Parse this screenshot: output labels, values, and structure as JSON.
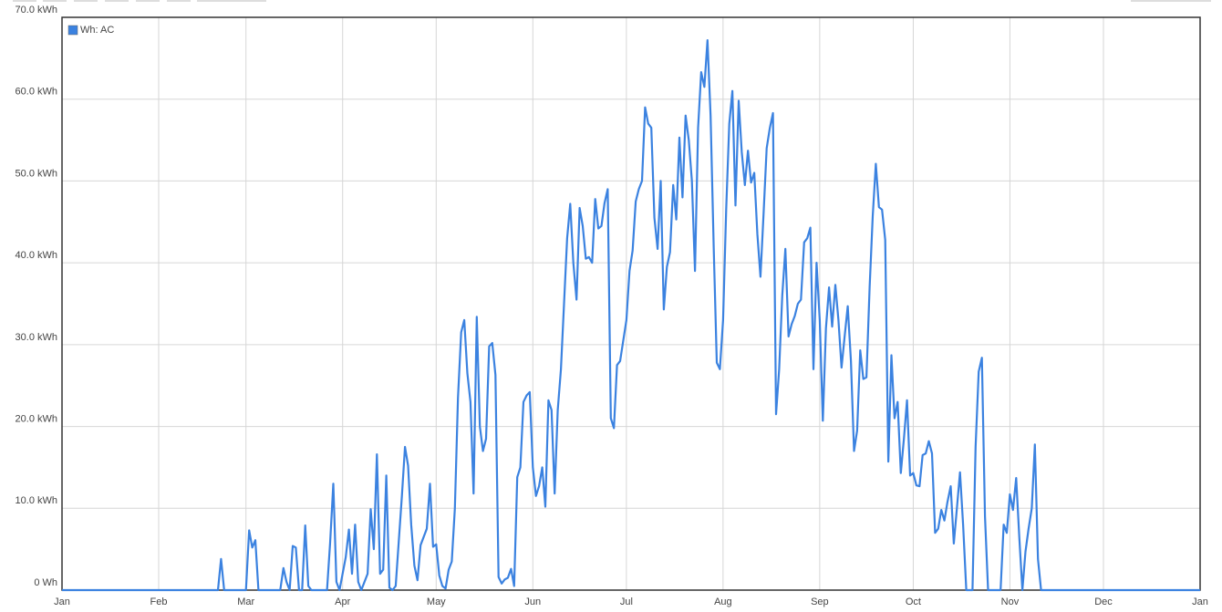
{
  "chart_data": {
    "type": "line",
    "x": [
      0,
      50,
      51,
      52,
      59,
      60,
      61,
      62,
      63,
      70,
      71,
      72,
      73,
      74,
      75,
      76,
      77,
      78,
      79,
      80,
      85,
      86,
      87,
      88,
      89,
      91,
      92,
      93,
      94,
      95,
      96,
      98,
      99,
      100,
      101,
      102,
      103,
      104,
      105,
      106,
      107,
      109,
      110,
      111,
      112,
      113,
      114,
      115,
      117,
      118,
      119,
      120,
      121,
      122,
      123,
      124,
      125,
      126,
      127,
      128,
      129,
      130,
      131,
      132,
      133,
      134,
      135,
      136,
      137,
      138,
      139,
      140,
      141,
      142,
      143,
      144,
      145,
      146,
      147,
      148,
      149,
      150,
      151,
      152,
      153,
      154,
      155,
      156,
      157,
      158,
      159,
      160,
      161,
      162,
      163,
      164,
      165,
      166,
      167,
      168,
      169,
      170,
      171,
      172,
      173,
      174,
      175,
      176,
      177,
      178,
      179,
      181,
      182,
      183,
      184,
      185,
      186,
      187,
      188,
      189,
      190,
      191,
      192,
      193,
      194,
      195,
      196,
      197,
      198,
      199,
      200,
      201,
      202,
      203,
      204,
      205,
      206,
      207,
      208,
      209,
      210,
      211,
      212,
      213,
      214,
      215,
      216,
      217,
      218,
      219,
      220,
      221,
      222,
      223,
      224,
      225,
      226,
      227,
      228,
      229,
      230,
      231,
      232,
      233,
      234,
      235,
      236,
      237,
      238,
      239,
      240,
      241,
      242,
      243,
      244,
      245,
      246,
      247,
      248,
      249,
      250,
      251,
      252,
      253,
      254,
      255,
      256,
      257,
      258,
      259,
      260,
      261,
      262,
      263,
      264,
      265,
      266,
      267,
      268,
      269,
      270,
      271,
      272,
      273,
      274,
      275,
      276,
      277,
      278,
      279,
      280,
      281,
      282,
      283,
      284,
      285,
      286,
      287,
      288,
      289,
      290,
      292,
      293,
      294,
      295,
      296,
      297,
      301,
      302,
      303,
      304,
      305,
      306,
      307,
      308,
      309,
      310,
      311,
      312,
      313,
      314,
      365
    ],
    "series": [
      {
        "name": "Wh: AC",
        "color": "#3b82e0",
        "values": [
          0,
          0,
          3.8,
          0,
          0,
          7.3,
          5.2,
          6.1,
          0,
          0,
          2.7,
          1,
          0,
          5.4,
          5.2,
          0,
          0,
          7.9,
          0.5,
          0,
          0,
          5.8,
          13.0,
          1,
          0,
          4,
          7.4,
          2,
          8,
          1,
          0,
          2,
          9.9,
          5,
          16.6,
          2,
          2.5,
          14,
          0.3,
          0,
          0.5,
          11.5,
          17.5,
          15.2,
          8,
          3,
          1.2,
          5.5,
          7.5,
          13,
          5.3,
          5.6,
          1.8,
          0.5,
          0.2,
          2.5,
          3.5,
          10,
          23.5,
          31.5,
          33,
          26.5,
          23,
          11.8,
          33.4,
          20,
          17,
          18.5,
          29.8,
          30.2,
          26.3,
          1.6,
          0.8,
          1.3,
          1.5,
          2.6,
          0.5,
          13.8,
          15,
          23,
          23.8,
          24.2,
          15,
          11.5,
          12.7,
          15,
          10.2,
          23.2,
          22,
          11.8,
          22,
          27,
          35,
          43,
          47.2,
          40,
          35.5,
          46.7,
          44.5,
          40.5,
          40.7,
          40,
          47.8,
          44.2,
          44.5,
          47.3,
          49,
          21,
          19.8,
          27.5,
          28,
          33,
          39,
          41.5,
          47.5,
          49,
          50,
          59,
          57,
          56.5,
          45.5,
          41.7,
          50,
          34.3,
          39.5,
          41.3,
          49.5,
          45.3,
          55.3,
          48,
          58,
          55,
          50,
          39,
          56.5,
          63.3,
          61.5,
          67.2,
          58,
          42,
          27.8,
          27,
          33,
          46.5,
          57,
          61,
          47,
          59.8,
          53.5,
          49.5,
          53.7,
          49.8,
          51,
          43.5,
          38.3,
          46,
          54,
          56.5,
          58.3,
          21.5,
          27,
          36,
          41.7,
          31,
          32.5,
          33.5,
          35,
          35.5,
          42.5,
          43,
          44.3,
          27,
          40,
          33,
          20.7,
          32,
          37,
          32.2,
          37.3,
          33,
          27.2,
          31,
          34.7,
          28,
          17,
          19.5,
          29.3,
          25.8,
          26,
          37,
          45.7,
          52.1,
          46.8,
          46.5,
          42.8,
          15.7,
          28.7,
          21,
          23,
          14.3,
          18.5,
          23.2,
          14,
          14.3,
          12.8,
          12.7,
          16.5,
          16.7,
          18.2,
          16.7,
          7,
          7.5,
          9.8,
          8.5,
          10.8,
          12.7,
          5.7,
          10,
          14.4,
          8,
          0,
          0,
          17.5,
          26.7,
          28.4,
          9,
          0,
          0,
          8,
          7,
          11.7,
          9.8,
          13.7,
          6.5,
          0,
          4.7,
          7.5,
          10,
          17.8,
          3.8,
          0,
          0
        ]
      }
    ],
    "xlim": [
      0,
      365
    ],
    "xticks": [
      {
        "value": 0,
        "label": "Jan"
      },
      {
        "value": 31,
        "label": "Feb"
      },
      {
        "value": 59,
        "label": "Mar"
      },
      {
        "value": 90,
        "label": "Apr"
      },
      {
        "value": 120,
        "label": "May"
      },
      {
        "value": 151,
        "label": "Jun"
      },
      {
        "value": 181,
        "label": "Jul"
      },
      {
        "value": 212,
        "label": "Aug"
      },
      {
        "value": 243,
        "label": "Sep"
      },
      {
        "value": 273,
        "label": "Oct"
      },
      {
        "value": 304,
        "label": "Nov"
      },
      {
        "value": 334,
        "label": "Dec"
      },
      {
        "value": 365,
        "label": "Jan"
      }
    ],
    "ylim": [
      0,
      70
    ],
    "yticks": [
      {
        "value": 0,
        "label": "0 Wh"
      },
      {
        "value": 10,
        "label": "10.0 kWh"
      },
      {
        "value": 20,
        "label": "20.0 kWh"
      },
      {
        "value": 30,
        "label": "30.0 kWh"
      },
      {
        "value": 40,
        "label": "40.0 kWh"
      },
      {
        "value": 50,
        "label": "50.0 kWh"
      },
      {
        "value": 60,
        "label": "60.0 kWh"
      },
      {
        "value": 70,
        "label": "70.0 kWh"
      }
    ],
    "grid": true,
    "legend": "top-left"
  }
}
